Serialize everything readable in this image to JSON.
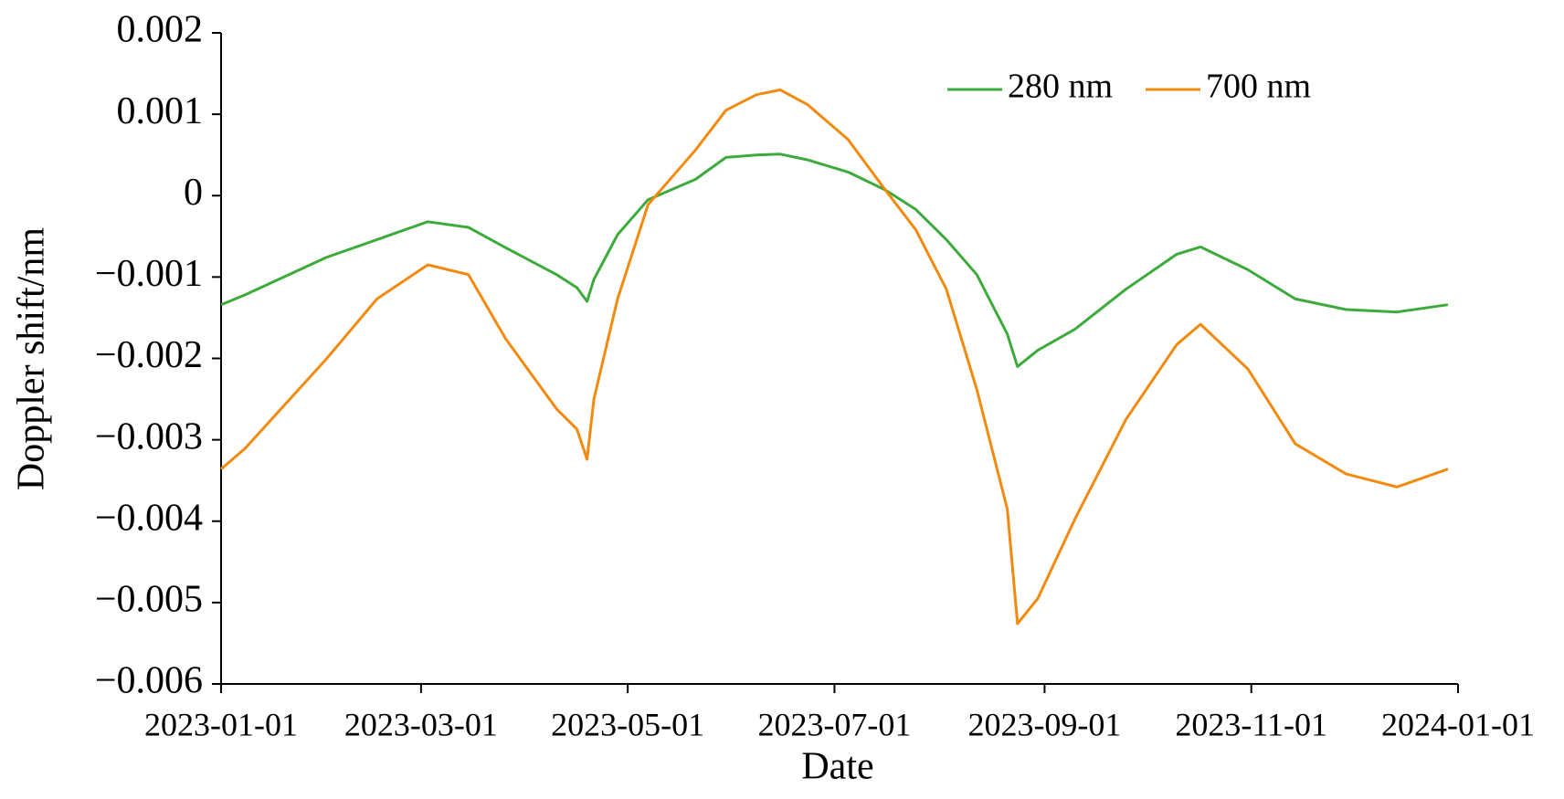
{
  "chart_data": {
    "type": "line",
    "xlabel": "Date",
    "ylabel": "Doppler shift/nm",
    "x": [
      "2023-01-01",
      "2023-01-08",
      "2023-02-01",
      "2023-02-16",
      "2023-03-03",
      "2023-03-15",
      "2023-03-26",
      "2023-04-10",
      "2023-04-16",
      "2023-04-19",
      "2023-04-21",
      "2023-04-28",
      "2023-05-07",
      "2023-05-21",
      "2023-05-30",
      "2023-06-08",
      "2023-06-15",
      "2023-06-23",
      "2023-07-05",
      "2023-07-16",
      "2023-07-25",
      "2023-08-03",
      "2023-08-12",
      "2023-08-21",
      "2023-08-24",
      "2023-08-30",
      "2023-09-10",
      "2023-09-25",
      "2023-10-10",
      "2023-10-17",
      "2023-10-31",
      "2023-11-14",
      "2023-11-29",
      "2023-12-14",
      "2023-12-29"
    ],
    "series": [
      {
        "name": "280 nm",
        "color": "#3cab3c",
        "values": [
          -0.00134,
          -0.00122,
          -0.00076,
          -0.00054,
          -0.00032,
          -0.00039,
          -0.00064,
          -0.00097,
          -0.00113,
          -0.0013,
          -0.00103,
          -0.00048,
          -5e-05,
          0.0002,
          0.00047,
          0.0005,
          0.00051,
          0.00044,
          0.00029,
          7e-05,
          -0.00017,
          -0.00054,
          -0.00097,
          -0.0017,
          -0.0021,
          -0.0019,
          -0.00164,
          -0.00115,
          -0.00072,
          -0.00063,
          -0.00091,
          -0.00127,
          -0.0014,
          -0.00143,
          -0.00134
        ]
      },
      {
        "name": "700 nm",
        "color": "#f28a0f",
        "values": [
          -0.00336,
          -0.00311,
          -0.00201,
          -0.00127,
          -0.00085,
          -0.00097,
          -0.00176,
          -0.00262,
          -0.00287,
          -0.00324,
          -0.0025,
          -0.00127,
          -0.00011,
          0.00056,
          0.00105,
          0.00124,
          0.0013,
          0.00112,
          0.00069,
          7e-05,
          -0.00042,
          -0.00115,
          -0.00238,
          -0.00385,
          -0.00526,
          -0.00495,
          -0.00397,
          -0.00275,
          -0.00183,
          -0.00158,
          -0.00213,
          -0.00305,
          -0.00342,
          -0.00358,
          -0.00336
        ]
      }
    ],
    "xlim": [
      "2023-01-01",
      "2024-01-01"
    ],
    "xticks": [
      "2023-01-01",
      "2023-03-01",
      "2023-05-01",
      "2023-07-01",
      "2023-09-01",
      "2023-11-01",
      "2024-01-01"
    ],
    "ylim": [
      -0.006,
      0.002
    ],
    "yticks": [
      {
        "value": -0.006,
        "label": "−0.006"
      },
      {
        "value": -0.005,
        "label": "−0.005"
      },
      {
        "value": -0.004,
        "label": "−0.004"
      },
      {
        "value": -0.003,
        "label": "−0.003"
      },
      {
        "value": -0.002,
        "label": "−0.002"
      },
      {
        "value": -0.001,
        "label": "−0.001"
      },
      0,
      0.001,
      0.002
    ],
    "legend": "upper right"
  }
}
